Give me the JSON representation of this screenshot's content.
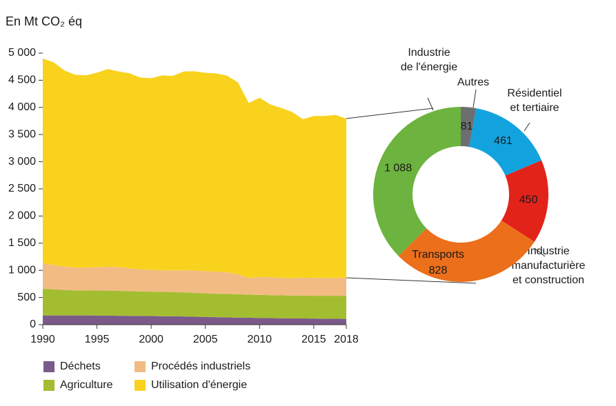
{
  "chart_data": [
    {
      "type": "stacked-area",
      "y_title": "En Mt CO₂ éq",
      "x": [
        1990,
        1991,
        1992,
        1993,
        1994,
        1995,
        1996,
        1997,
        1998,
        1999,
        2000,
        2001,
        2002,
        2003,
        2004,
        2005,
        2006,
        2007,
        2008,
        2009,
        2010,
        2011,
        2012,
        2013,
        2014,
        2015,
        2016,
        2017,
        2018
      ],
      "xlim": [
        1990,
        2018
      ],
      "xticks": [
        1990,
        1995,
        2000,
        2005,
        2010,
        2015,
        2018
      ],
      "ylim": [
        0,
        5000
      ],
      "yticks": [
        0,
        500,
        {
          "value": 1000,
          "label": "1 000"
        },
        {
          "value": 1500,
          "label": "1 500"
        },
        {
          "value": 2000,
          "label": "2 000"
        },
        {
          "value": 2500,
          "label": "2 500"
        },
        {
          "value": 3000,
          "label": "3 000"
        },
        {
          "value": 3500,
          "label": "3 500"
        },
        {
          "value": 4000,
          "label": "4 000"
        },
        {
          "value": 4500,
          "label": "4 500"
        },
        {
          "value": 5000,
          "label": "5 000"
        }
      ],
      "series": [
        {
          "name": "Déchets",
          "color": "#7b5a8a",
          "values": [
            170,
            170,
            170,
            170,
            170,
            168,
            166,
            164,
            162,
            160,
            158,
            156,
            154,
            150,
            146,
            142,
            138,
            134,
            130,
            127,
            124,
            121,
            118,
            116,
            114,
            112,
            110,
            108,
            106
          ]
        },
        {
          "name": "Agriculture",
          "color": "#a3bd31",
          "values": [
            490,
            480,
            470,
            460,
            460,
            460,
            460,
            458,
            455,
            450,
            450,
            448,
            445,
            445,
            440,
            435,
            432,
            430,
            430,
            425,
            423,
            422,
            421,
            420,
            420,
            420,
            422,
            424,
            425
          ]
        },
        {
          "name": "Procédés industriels",
          "color": "#f2bb83",
          "values": [
            470,
            450,
            430,
            420,
            420,
            430,
            440,
            440,
            420,
            410,
            400,
            395,
            400,
            405,
            410,
            410,
            405,
            400,
            370,
            310,
            330,
            330,
            320,
            320,
            330,
            330,
            330,
            330,
            330
          ]
        },
        {
          "name": "Utilisation d'énergie",
          "color": "#f9d21e",
          "values": [
            3770,
            3730,
            3610,
            3550,
            3540,
            3580,
            3640,
            3600,
            3590,
            3530,
            3530,
            3590,
            3580,
            3660,
            3670,
            3650,
            3650,
            3620,
            3530,
            3220,
            3300,
            3180,
            3130,
            3060,
            2920,
            2980,
            2980,
            3000,
            2930
          ]
        }
      ]
    },
    {
      "type": "donut",
      "categories": [
        [
          "Autres"
        ],
        [
          "Résidentiel",
          "et tertiaire"
        ],
        [
          "Industrie",
          "manufacturière",
          "et construction"
        ],
        [
          "Transports"
        ],
        [
          "Industrie",
          "de l'énergie"
        ]
      ],
      "values": [
        81,
        461,
        450,
        828,
        1088
      ],
      "value_labels": [
        "81",
        "461",
        "450",
        "828",
        "1 088"
      ],
      "colors": [
        "#6d6e70",
        "#12a3de",
        "#e2231a",
        "#ec6f1b",
        "#6db33f"
      ]
    }
  ]
}
